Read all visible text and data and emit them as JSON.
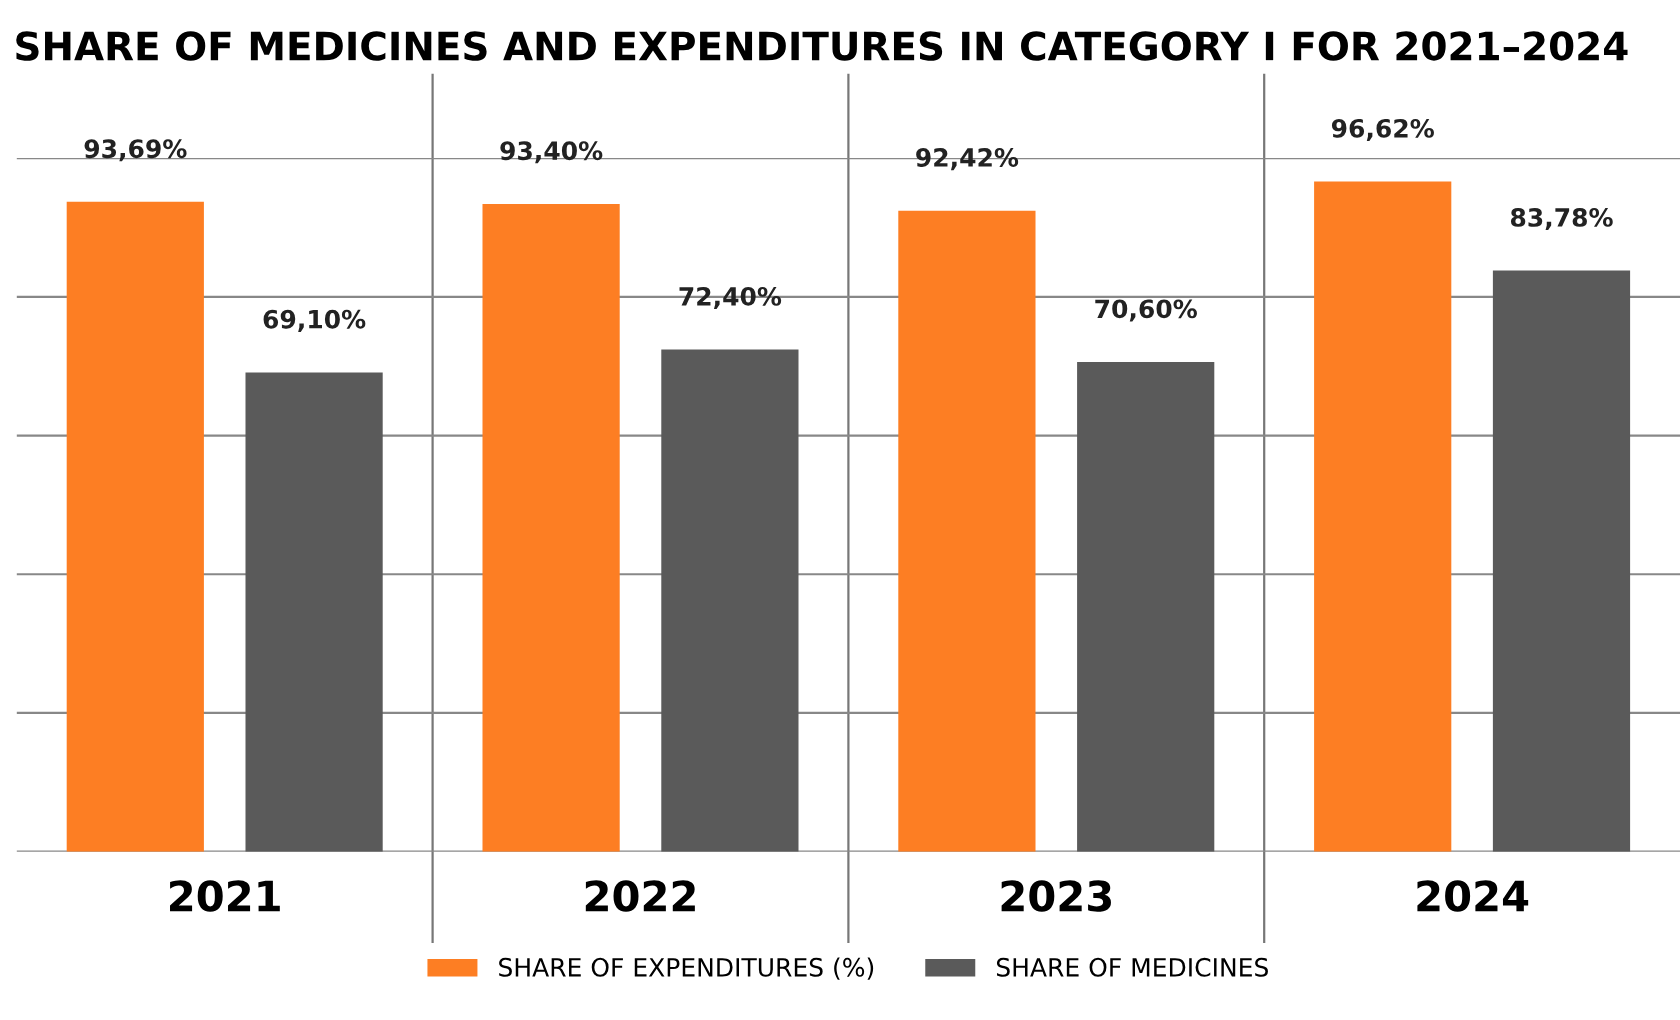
{
  "chart_data": {
    "type": "bar",
    "title": "SHARE OF MEDICINES AND EXPENDITURES IN CATEGORY I FOR 2021–2024",
    "categories": [
      "2021",
      "2022",
      "2023",
      "2024"
    ],
    "series": [
      {
        "name": "SHARE OF EXPENDITURES (%)",
        "color": "#fd7e23",
        "values": [
          93.69,
          93.4,
          92.42,
          96.62
        ],
        "value_labels": [
          "93,69%",
          "93,40%",
          "92,42%",
          "96,62%"
        ]
      },
      {
        "name": "SHARE OF MEDICINES",
        "color": "#5a5a5a",
        "values": [
          69.1,
          72.4,
          70.6,
          83.78
        ],
        "value_labels": [
          "69,10%",
          "72,40%",
          "70,60%",
          "83,78%"
        ]
      }
    ],
    "ylim": [
      0,
      100
    ],
    "yticks": [
      {
        "value": 0,
        "label": null
      },
      {
        "value": 20,
        "label": null
      },
      {
        "value": 40,
        "label": null
      },
      {
        "value": 60,
        "label": null
      },
      {
        "value": 80,
        "label": null
      },
      {
        "value": 100,
        "label": null
      }
    ],
    "grid": "y",
    "legend": "bottom",
    "tick_labels": "x"
  }
}
